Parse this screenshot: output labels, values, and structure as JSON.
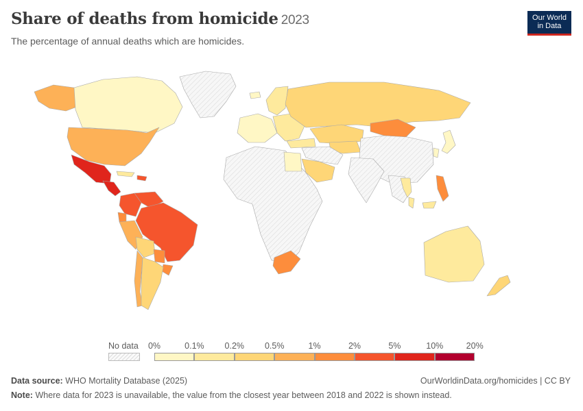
{
  "header": {
    "title": "Share of deaths from homicide",
    "year": "2023",
    "subtitle": "The percentage of annual deaths which are homicides."
  },
  "logo": {
    "line1": "Our World",
    "line2": "in Data"
  },
  "legend": {
    "no_data_label": "No data",
    "tick_labels": [
      "0%",
      "0.1%",
      "0.2%",
      "0.5%",
      "1%",
      "2%",
      "5%",
      "10%",
      "20%"
    ],
    "bin_colors": [
      "#fff7c5",
      "#feea9d",
      "#fed677",
      "#fdb157",
      "#fd8d3c",
      "#f5552d",
      "#e0251c",
      "#b2002e"
    ]
  },
  "regions": [
    {
      "name": "Canada",
      "bin": 0
    },
    {
      "name": "United States",
      "bin": 3
    },
    {
      "name": "Alaska",
      "bin": 3
    },
    {
      "name": "Mexico",
      "bin": 6
    },
    {
      "name": "Central America",
      "bin": 6
    },
    {
      "name": "Cuba",
      "bin": 1
    },
    {
      "name": "Caribbean",
      "bin": 5
    },
    {
      "name": "Colombia",
      "bin": 5
    },
    {
      "name": "Venezuela",
      "bin": 5
    },
    {
      "name": "Brazil",
      "bin": 5
    },
    {
      "name": "Ecuador",
      "bin": 4
    },
    {
      "name": "Peru",
      "bin": 3
    },
    {
      "name": "Bolivia",
      "bin": 2
    },
    {
      "name": "Paraguay",
      "bin": 4
    },
    {
      "name": "Uruguay",
      "bin": 4
    },
    {
      "name": "Chile",
      "bin": 3
    },
    {
      "name": "Argentina",
      "bin": 2
    },
    {
      "name": "Greenland",
      "bin": -1
    },
    {
      "name": "Iceland",
      "bin": 0
    },
    {
      "name": "Western Europe",
      "bin": 0
    },
    {
      "name": "Scandinavia",
      "bin": 1
    },
    {
      "name": "Eastern Europe",
      "bin": 1
    },
    {
      "name": "Russia",
      "bin": 2
    },
    {
      "name": "Kazakhstan",
      "bin": 2
    },
    {
      "name": "Central Asia",
      "bin": 2
    },
    {
      "name": "Mongolia",
      "bin": 4
    },
    {
      "name": "Turkey",
      "bin": 1
    },
    {
      "name": "Egypt",
      "bin": 0
    },
    {
      "name": "Saudi Arabia",
      "bin": 2
    },
    {
      "name": "Japan",
      "bin": 0
    },
    {
      "name": "South Korea",
      "bin": 0
    },
    {
      "name": "Thailand",
      "bin": 1
    },
    {
      "name": "Philippines",
      "bin": 4
    },
    {
      "name": "Malaysia",
      "bin": 1
    },
    {
      "name": "South Africa",
      "bin": 4
    },
    {
      "name": "Australia",
      "bin": 1
    },
    {
      "name": "New Zealand",
      "bin": 2
    },
    {
      "name": "China",
      "bin": -1
    },
    {
      "name": "India",
      "bin": -1
    },
    {
      "name": "Africa",
      "bin": -1
    },
    {
      "name": "Middle East",
      "bin": -1
    },
    {
      "name": "Southeast Asia",
      "bin": -1
    }
  ],
  "footer": {
    "source_label": "Data source:",
    "source_text": "WHO Mortality Database (2025)",
    "url": "OurWorldinData.org/homicides | CC BY",
    "note_label": "Note:",
    "note_text": "Where data for 2023 is unavailable, the value from the closest year between 2018 and 2022 is shown instead."
  }
}
